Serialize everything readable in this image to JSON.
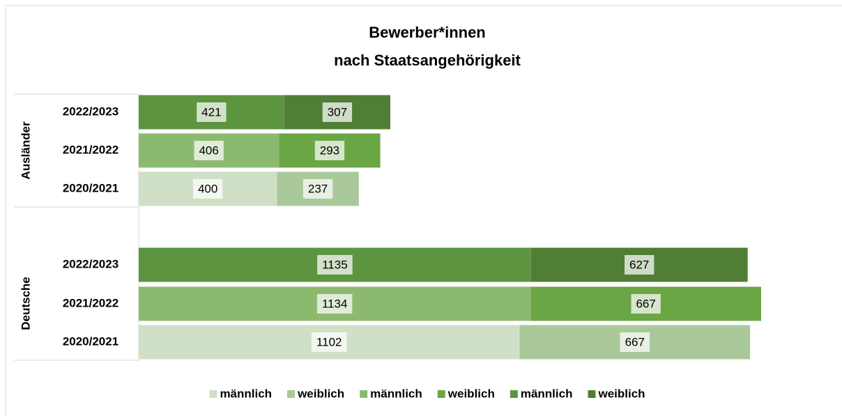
{
  "chart_data": {
    "type": "bar",
    "orientation": "horizontal",
    "stacked": true,
    "title": [
      "Bewerber*innen",
      "nach Staatsangehörigkeit"
    ],
    "groups": [
      {
        "name": "Ausländer",
        "categories": [
          "2022/2023",
          "2021/2022",
          "2020/2021"
        ]
      },
      {
        "name": "Deutsche",
        "categories": [
          "2022/2023",
          "2021/2022",
          "2020/2021"
        ]
      }
    ],
    "series": [
      {
        "name": "männlich",
        "color": "#cfe0c7",
        "values": [
          null,
          null,
          400,
          null,
          null,
          1102
        ]
      },
      {
        "name": "weiblich",
        "color": "#aac99b",
        "values": [
          null,
          null,
          237,
          null,
          null,
          667
        ]
      },
      {
        "name": "männlich",
        "color": "#8bba6f",
        "values": [
          null,
          406,
          null,
          null,
          1134,
          null
        ]
      },
      {
        "name": "weiblich",
        "color": "#6aa644",
        "values": [
          null,
          293,
          null,
          null,
          667,
          null
        ]
      },
      {
        "name": "männlich",
        "color": "#5d9440",
        "values": [
          421,
          null,
          null,
          1135,
          null,
          null
        ]
      },
      {
        "name": "weiblich",
        "color": "#4f7e34",
        "values": [
          307,
          null,
          null,
          627,
          null,
          null
        ]
      }
    ],
    "legend": "bottom"
  }
}
